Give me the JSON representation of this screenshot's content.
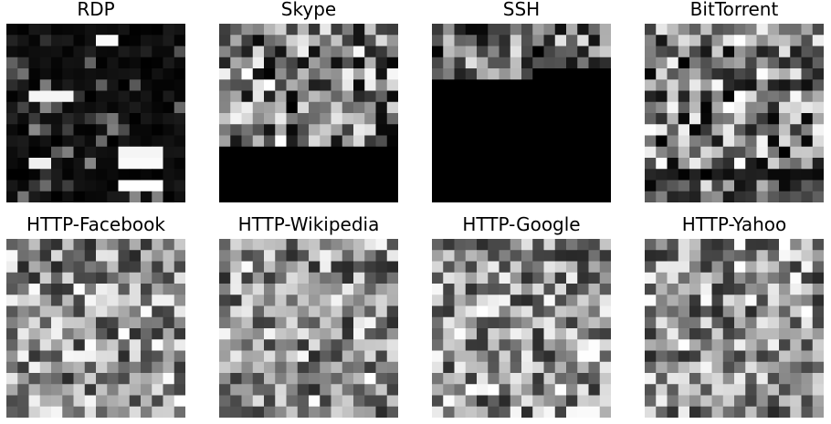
{
  "chart_data": [
    {
      "type": "heatmap",
      "title": "RDP",
      "colormap": "gray",
      "grid": false,
      "axes": "off",
      "rows": 16,
      "cols": 16,
      "pattern": "mostly near-black cells with occasional bright horizontal bars"
    },
    {
      "type": "heatmap",
      "title": "Skype",
      "colormap": "gray",
      "grid": false,
      "axes": "off",
      "rows": 16,
      "cols": 16,
      "pattern": "varied gray cells in upper rows, solid black from row 12 down"
    },
    {
      "type": "heatmap",
      "title": "SSH",
      "colormap": "gray",
      "grid": false,
      "axes": "off",
      "rows": 16,
      "cols": 16,
      "pattern": "varied gray cells in the first 5 rows, solid black below"
    },
    {
      "type": "heatmap",
      "title": "BitTorrent",
      "colormap": "gray",
      "grid": false,
      "axes": "off",
      "rows": 16,
      "cols": 16,
      "pattern": "noisy gray cells with a black horizontal band near the bottom"
    },
    {
      "type": "heatmap",
      "title": "HTTP-Facebook",
      "colormap": "gray",
      "grid": false,
      "axes": "off",
      "rows": 16,
      "cols": 16,
      "pattern": "noisy gray cells throughout"
    },
    {
      "type": "heatmap",
      "title": "HTTP-Wikipedia",
      "colormap": "gray",
      "grid": false,
      "axes": "off",
      "rows": 16,
      "cols": 16,
      "pattern": "noisy gray cells throughout"
    },
    {
      "type": "heatmap",
      "title": "HTTP-Google",
      "colormap": "gray",
      "grid": false,
      "axes": "off",
      "rows": 16,
      "cols": 16,
      "pattern": "noisy gray cells throughout"
    },
    {
      "type": "heatmap",
      "title": "HTTP-Yahoo",
      "colormap": "gray",
      "grid": false,
      "axes": "off",
      "rows": 16,
      "cols": 16,
      "pattern": "noisy gray cells throughout"
    }
  ]
}
